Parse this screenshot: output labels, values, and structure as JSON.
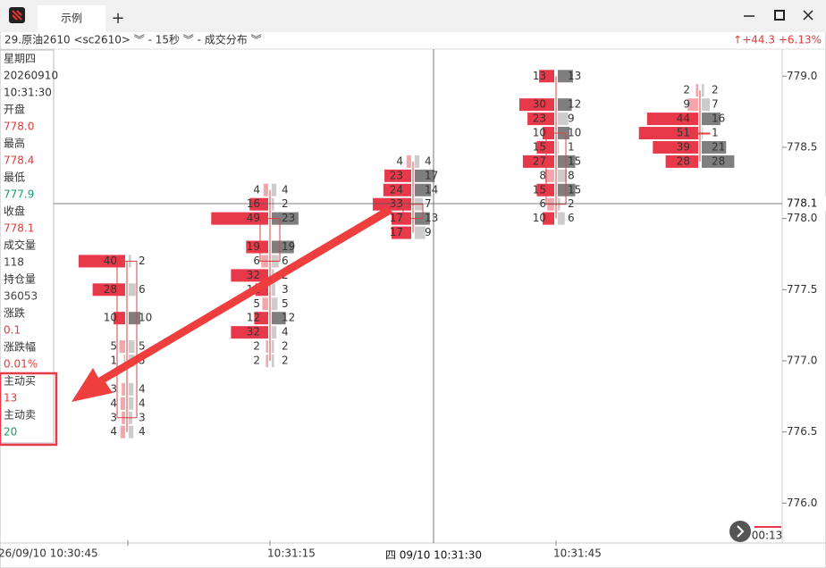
{
  "window": {
    "tab": "示例",
    "add": "+"
  },
  "header": {
    "title": "29.原油2610 <sc2610> ︾ - 15秒 ︾ - 成交分布 ︾",
    "change": "↑+44.3 +6.13%"
  },
  "info": {
    "day": "星期四",
    "date": "20260910",
    "time": "10:31:30",
    "fields": [
      {
        "label": "开盘",
        "value": "778.0",
        "color": "#e03c3c"
      },
      {
        "label": "最高",
        "value": "778.4",
        "color": "#e03c3c"
      },
      {
        "label": "最低",
        "value": "777.9",
        "color": "#1a9a6a"
      },
      {
        "label": "收盘",
        "value": "778.1",
        "color": "#e03c3c"
      },
      {
        "label": "成交量",
        "value": "118",
        "color": "#444444"
      },
      {
        "label": "持仓量",
        "value": "36053",
        "color": "#444444"
      },
      {
        "label": "涨跌",
        "value": "0.1",
        "color": "#e03c3c"
      },
      {
        "label": "涨跌幅",
        "value": "0.01%",
        "color": "#e03c3c"
      },
      {
        "label": "主动买",
        "value": "13",
        "color": "#e03c3c"
      },
      {
        "label": "主动卖",
        "value": "20",
        "color": "#1a9a6a"
      }
    ]
  },
  "time_axis": [
    "26/09/10 10:30:45",
    "10:31:15",
    "10:31:45"
  ],
  "crosshair": {
    "time": "四 09/10 10:31:30",
    "price": "778.1"
  },
  "countdown": "00:13",
  "chart_data": {
    "type": "footprint",
    "ylim": [
      775.72,
      779.19
    ],
    "yticks": [
      {
        "value": 776,
        "label": "776.0"
      },
      776.5,
      {
        "value": 777,
        "label": "777.0"
      },
      777.5,
      {
        "value": 778,
        "label": "778.0"
      },
      778.5,
      {
        "value": 779,
        "label": "779.0"
      }
    ],
    "sell_color": "#e8394a",
    "buy_color": "#7f7f7f",
    "candle_color": "#d94040",
    "candles": [
      {
        "open": 777.7,
        "close": 776.6,
        "high": 777.7,
        "low": 776.5,
        "levels": [
          {
            "price": 777.7,
            "sell": 40,
            "buy": 2
          },
          {
            "price": 777.5,
            "sell": 28,
            "buy": 6
          },
          {
            "price": 777.3,
            "sell": 10,
            "buy": 10
          },
          {
            "price": 777.1,
            "sell": 5,
            "buy": 5
          },
          {
            "price": 777.0,
            "sell": 1,
            "buy": 5
          },
          {
            "price": 776.8,
            "sell": 3,
            "buy": 4
          },
          {
            "price": 776.7,
            "sell": 4,
            "buy": 4
          },
          {
            "price": 776.6,
            "sell": 3,
            "buy": 3
          },
          {
            "price": 776.5,
            "sell": 4,
            "buy": 4
          }
        ]
      },
      {
        "open": 778.0,
        "close": 777.7,
        "high": 778.2,
        "low": 777.0,
        "levels": [
          {
            "price": 778.2,
            "sell": 4,
            "buy": 4
          },
          {
            "price": 778.1,
            "sell": 16,
            "buy": 2
          },
          {
            "price": 778.0,
            "sell": 49,
            "buy": 23
          },
          {
            "price": 777.8,
            "sell": 19,
            "buy": 19
          },
          {
            "price": 777.7,
            "sell": 6,
            "buy": 6
          },
          {
            "price": 777.6,
            "sell": 32,
            "buy": 2
          },
          {
            "price": 777.5,
            "sell": 11,
            "buy": 3
          },
          {
            "price": 777.4,
            "sell": 5,
            "buy": 5
          },
          {
            "price": 777.3,
            "sell": 12,
            "buy": 12
          },
          {
            "price": 777.2,
            "sell": 32,
            "buy": 4
          },
          {
            "price": 777.1,
            "sell": 2,
            "buy": 2
          },
          {
            "price": 777.0,
            "sell": 2,
            "buy": 2
          }
        ]
      },
      {
        "open": 778.0,
        "close": 778.1,
        "high": 778.4,
        "low": 777.9,
        "levels": [
          {
            "price": 778.4,
            "sell": 4,
            "buy": 4
          },
          {
            "price": 778.3,
            "sell": 23,
            "buy": 17
          },
          {
            "price": 778.2,
            "sell": 24,
            "buy": 14
          },
          {
            "price": 778.1,
            "sell": 33,
            "buy": 7
          },
          {
            "price": 778.0,
            "sell": 17,
            "buy": 13
          },
          {
            "price": 777.9,
            "sell": 17,
            "buy": 9
          }
        ]
      },
      {
        "open": 778.1,
        "close": 778.6,
        "high": 779.0,
        "low": 778.0,
        "levels": [
          {
            "price": 779.0,
            "sell": 13,
            "buy": 13
          },
          {
            "price": 778.8,
            "sell": 30,
            "buy": 12
          },
          {
            "price": 778.7,
            "sell": 23,
            "buy": 9
          },
          {
            "price": 778.6,
            "sell": 10,
            "buy": 10
          },
          {
            "price": 778.5,
            "sell": 15,
            "buy": 1
          },
          {
            "price": 778.4,
            "sell": 27,
            "buy": 15
          },
          {
            "price": 778.3,
            "sell": 8,
            "buy": 8
          },
          {
            "price": 778.2,
            "sell": 15,
            "buy": 15
          },
          {
            "price": 778.1,
            "sell": 6,
            "buy": 2
          },
          {
            "price": 778.0,
            "sell": 10,
            "buy": 6
          }
        ]
      },
      {
        "open": 778.6,
        "close": 778.6,
        "high": 778.9,
        "low": 778.4,
        "levels": [
          {
            "price": 778.9,
            "sell": 2,
            "buy": 2
          },
          {
            "price": 778.8,
            "sell": 9,
            "buy": 7
          },
          {
            "price": 778.7,
            "sell": 44,
            "buy": 16
          },
          {
            "price": 778.6,
            "sell": 51,
            "buy": 1
          },
          {
            "price": 778.5,
            "sell": 39,
            "buy": 21
          },
          {
            "price": 778.4,
            "sell": 28,
            "buy": 28
          }
        ]
      }
    ]
  }
}
